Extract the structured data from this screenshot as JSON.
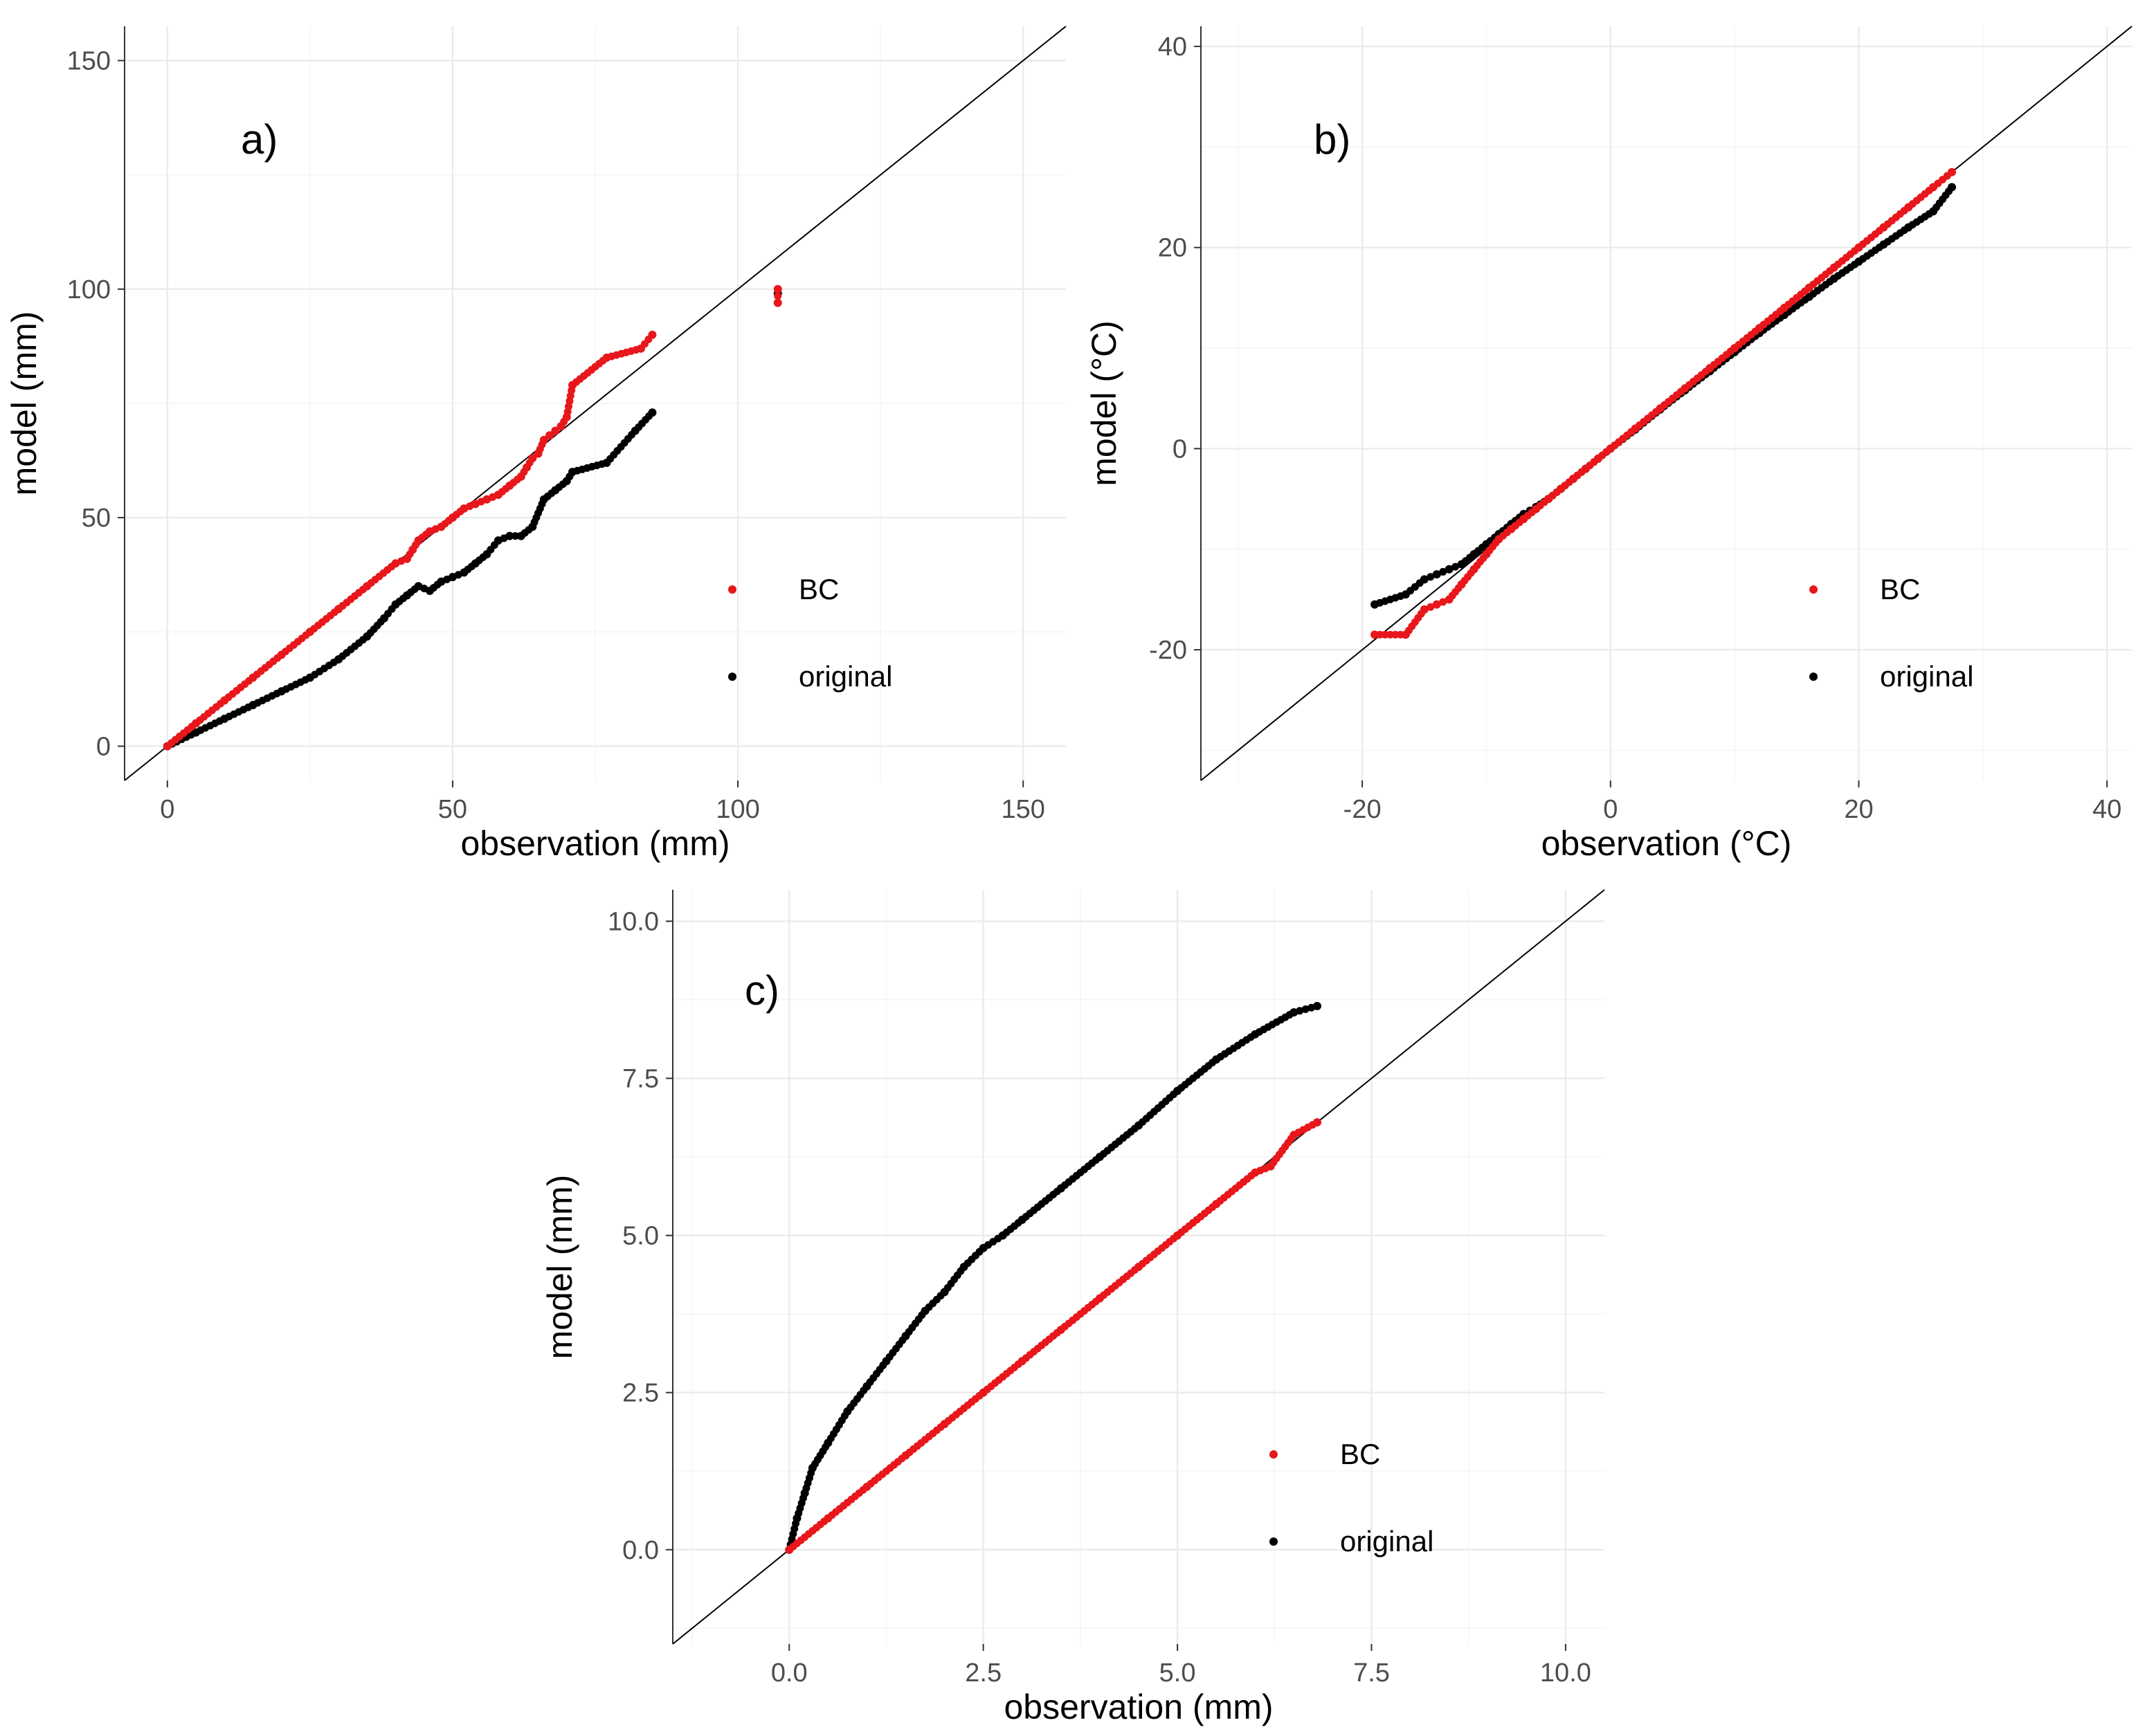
{
  "legend": {
    "bc_label": "BC",
    "original_label": "original"
  },
  "colors": {
    "bc": "#e8171b",
    "original": "#000000",
    "diagonal": "#000000",
    "grid": "#ebebeb"
  },
  "chart_data": [
    {
      "type": "scatter",
      "panel_label": "a)",
      "xlabel": "observation (mm)",
      "ylabel": "model (mm)",
      "xlim": [
        -7.5,
        157.5
      ],
      "ylim": [
        -7.5,
        157.5
      ],
      "xticks": [
        0,
        50,
        100,
        150
      ],
      "yticks": [
        0,
        50,
        100,
        150
      ],
      "tick_labels_x": [
        "0",
        "50",
        "100",
        "150"
      ],
      "tick_labels_y": [
        "0",
        "50",
        "100",
        "150"
      ],
      "legend_position": "bottom-right",
      "reference_line": "y = x",
      "series": [
        {
          "name": "BC",
          "x": [
            0,
            5,
            10,
            15,
            20,
            25,
            30,
            35,
            40,
            42,
            43,
            44,
            46,
            48,
            50,
            52,
            54,
            56,
            58,
            60,
            62,
            63,
            64,
            65,
            66,
            67,
            68,
            69,
            70,
            71,
            77,
            83,
            85,
            107,
            107
          ],
          "y": [
            0,
            5,
            10,
            15,
            20,
            25,
            30,
            35,
            40,
            41,
            43,
            45,
            47,
            48,
            50,
            52,
            53,
            54,
            55,
            57,
            59,
            61,
            63,
            64,
            67,
            68,
            69,
            70,
            72,
            79,
            85,
            87,
            90,
            100,
            97
          ]
        },
        {
          "name": "original",
          "x": [
            0,
            5,
            10,
            15,
            20,
            25,
            30,
            35,
            38,
            40,
            42,
            44,
            46,
            48,
            50,
            52,
            54,
            56,
            58,
            60,
            62,
            64,
            66,
            68,
            70,
            71,
            77,
            82,
            85,
            107
          ],
          "y": [
            0,
            3,
            6,
            9,
            12,
            15,
            19,
            24,
            28,
            31,
            33,
            35,
            34,
            36,
            37,
            38,
            40,
            42,
            45,
            46,
            46,
            48,
            54,
            56,
            58,
            60,
            62,
            69,
            73,
            99
          ]
        }
      ]
    },
    {
      "type": "scatter",
      "panel_label": "b)",
      "xlabel": "observation (°C)",
      "ylabel": "model (°C)",
      "xlim": [
        -33,
        42
      ],
      "ylim": [
        -33,
        42
      ],
      "xticks": [
        -20,
        0,
        20,
        40
      ],
      "yticks": [
        -20,
        0,
        20,
        40
      ],
      "tick_labels_x": [
        "-20",
        "0",
        "20",
        "40"
      ],
      "tick_labels_y": [
        "-20",
        "0",
        "20",
        "40"
      ],
      "legend_position": "bottom-right",
      "reference_line": "y = x",
      "series": [
        {
          "name": "BC",
          "x": [
            -19,
            -16.5,
            -15,
            -14,
            -13,
            -12,
            -11,
            -10,
            -9,
            -8,
            -7,
            -6,
            -5,
            -4,
            -3,
            -2,
            -1,
            0,
            2,
            4,
            6,
            8,
            10,
            12,
            14,
            16,
            18,
            20,
            22,
            24,
            26,
            27.5
          ],
          "y": [
            -18.5,
            -18.5,
            -16,
            -15.5,
            -15,
            -13.5,
            -12,
            -10.5,
            -9,
            -8,
            -7,
            -6,
            -5,
            -4,
            -3,
            -2,
            -1,
            0,
            2,
            4,
            6,
            8,
            10,
            12,
            14,
            16,
            18,
            20,
            22,
            24,
            26,
            27.5
          ]
        },
        {
          "name": "original",
          "x": [
            -19,
            -16.5,
            -15,
            -14,
            -13,
            -12,
            -11,
            -10,
            -9,
            -8,
            -7,
            -6,
            -5,
            -4,
            -3,
            -2,
            -1,
            0,
            2,
            4,
            6,
            8,
            10,
            12,
            14,
            16,
            18,
            20,
            22,
            24,
            26,
            27.5
          ],
          "y": [
            -15.5,
            -14.5,
            -13,
            -12.5,
            -12,
            -11.5,
            -10.5,
            -9.5,
            -8.5,
            -7.5,
            -6.5,
            -5.8,
            -5,
            -4,
            -3,
            -2,
            -1,
            0,
            1.9,
            3.9,
            5.8,
            7.7,
            9.6,
            11.5,
            13.3,
            15.1,
            16.9,
            18.6,
            20.3,
            22,
            23.6,
            26
          ]
        }
      ]
    },
    {
      "type": "scatter",
      "panel_label": "c)",
      "xlabel": "observation (mm)",
      "ylabel": "model (mm)",
      "xlim": [
        -1.5,
        10.5
      ],
      "ylim": [
        -1.5,
        10.5
      ],
      "xticks": [
        0.0,
        2.5,
        5.0,
        7.5,
        10.0
      ],
      "yticks": [
        0.0,
        2.5,
        5.0,
        7.5,
        10.0
      ],
      "tick_labels_x": [
        "0.0",
        "2.5",
        "5.0",
        "7.5",
        "10.0"
      ],
      "tick_labels_y": [
        "0.0",
        "2.5",
        "5.0",
        "7.5",
        "10.0"
      ],
      "legend_position": "bottom-right",
      "reference_line": "y = x",
      "series": [
        {
          "name": "BC",
          "x": [
            0,
            0.5,
            1,
            1.5,
            2,
            2.5,
            3,
            3.5,
            4,
            4.5,
            5,
            5.5,
            6,
            6.2,
            6.5,
            6.8
          ],
          "y": [
            0,
            0.5,
            1,
            1.5,
            2,
            2.5,
            3,
            3.5,
            4,
            4.5,
            5,
            5.5,
            6,
            6.1,
            6.6,
            6.8
          ]
        },
        {
          "name": "original",
          "x": [
            0,
            0.1,
            0.2,
            0.3,
            0.5,
            0.75,
            1,
            1.25,
            1.5,
            1.75,
            2,
            2.25,
            2.5,
            2.75,
            3,
            3.5,
            4,
            4.5,
            5,
            5.5,
            6,
            6.5,
            6.8
          ],
          "y": [
            0,
            0.5,
            0.9,
            1.3,
            1.7,
            2.2,
            2.6,
            3.0,
            3.4,
            3.8,
            4.1,
            4.5,
            4.8,
            5.0,
            5.25,
            5.75,
            6.25,
            6.75,
            7.3,
            7.8,
            8.2,
            8.55,
            8.65
          ]
        }
      ]
    }
  ]
}
